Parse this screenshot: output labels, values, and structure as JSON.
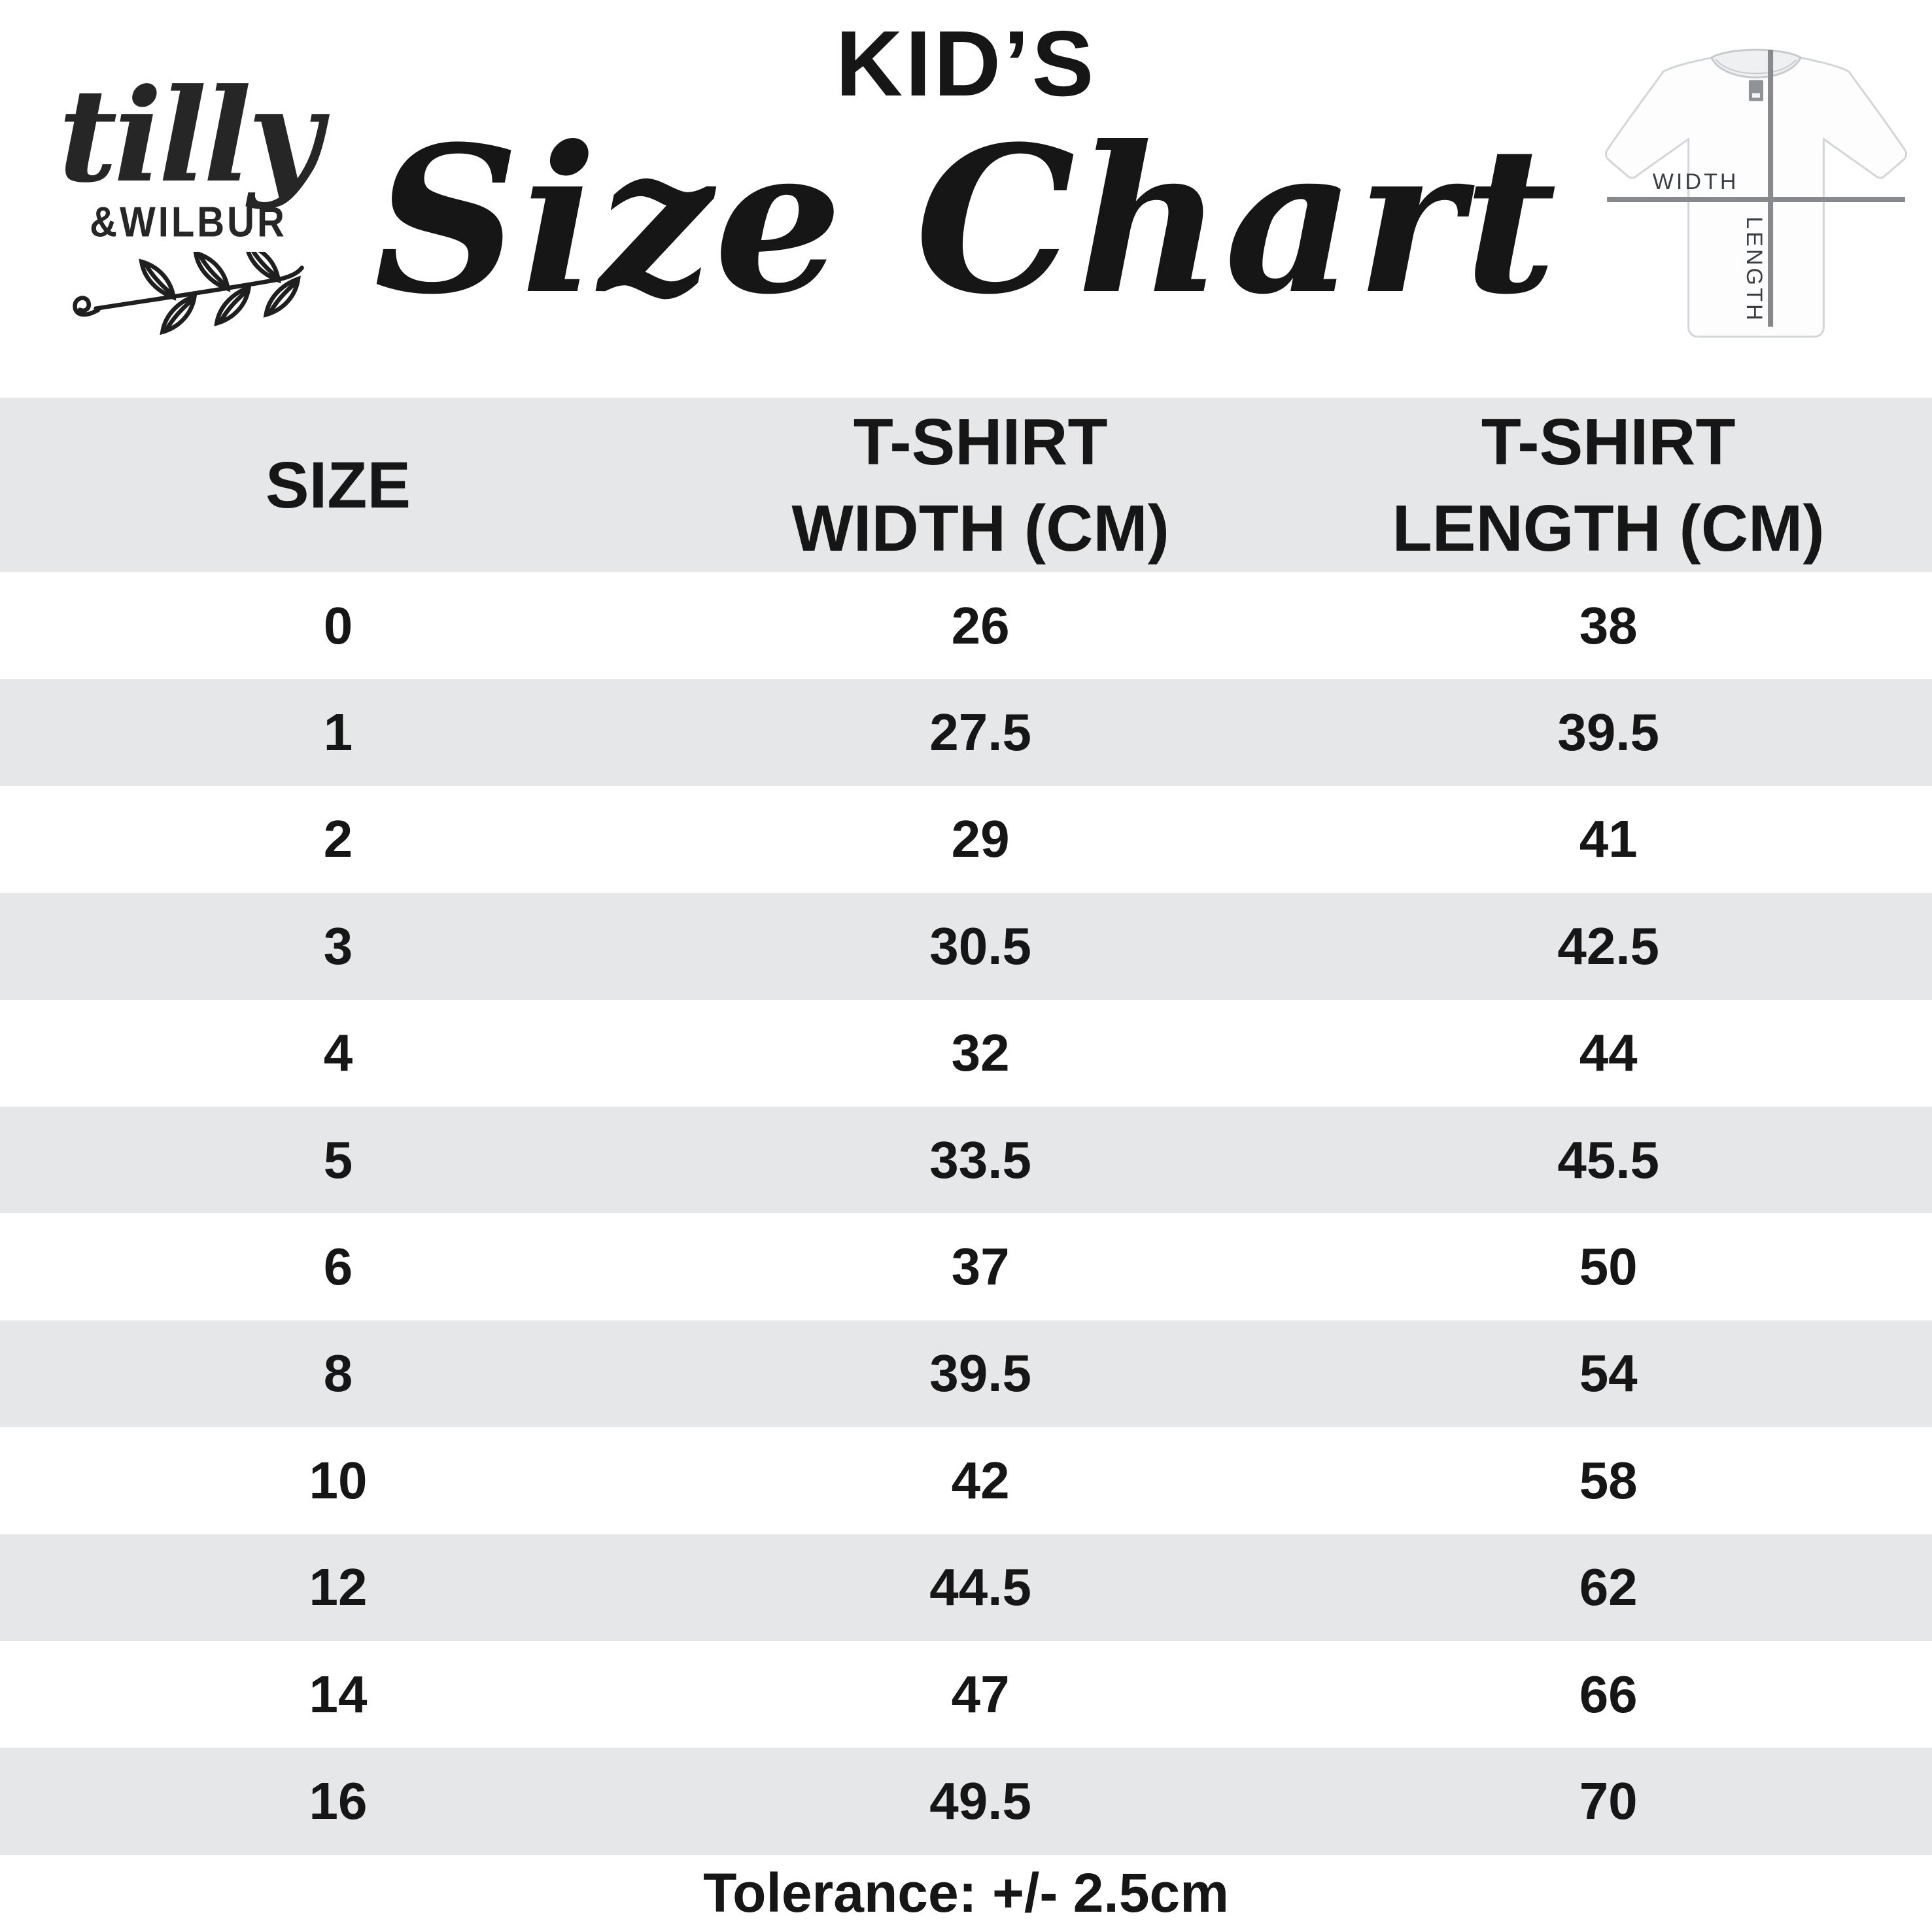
{
  "brand": {
    "script_name": "tilly",
    "caps_name": "&WILBUR"
  },
  "header": {
    "kicker": "KID’S",
    "title": "Size Chart"
  },
  "tshirt_diagram": {
    "width_label": "WIDTH",
    "length_label": "LENGTH",
    "line_color": "#87898c",
    "label_color": "#3b3f43"
  },
  "table": {
    "columns": [
      "SIZE",
      "T-SHIRT\nWIDTH (CM)",
      "T-SHIRT\nLENGTH (CM)"
    ],
    "alt_row_color": "#e6e7e8",
    "rows": [
      {
        "size": "0",
        "width": "26",
        "length": "38"
      },
      {
        "size": "1",
        "width": "27.5",
        "length": "39.5"
      },
      {
        "size": "2",
        "width": "29",
        "length": "41"
      },
      {
        "size": "3",
        "width": "30.5",
        "length": "42.5"
      },
      {
        "size": "4",
        "width": "32",
        "length": "44"
      },
      {
        "size": "5",
        "width": "33.5",
        "length": "45.5"
      },
      {
        "size": "6",
        "width": "37",
        "length": "50"
      },
      {
        "size": "8",
        "width": "39.5",
        "length": "54"
      },
      {
        "size": "10",
        "width": "42",
        "length": "58"
      },
      {
        "size": "12",
        "width": "44.5",
        "length": "62"
      },
      {
        "size": "14",
        "width": "47",
        "length": "66"
      },
      {
        "size": "16",
        "width": "49.5",
        "length": "70"
      }
    ]
  },
  "footer": {
    "tolerance": "Tolerance: +/- 2.5cm"
  },
  "chart_data": {
    "type": "table",
    "title": "KID’S Size Chart",
    "columns": [
      "SIZE",
      "T-SHIRT WIDTH (CM)",
      "T-SHIRT LENGTH (CM)"
    ],
    "rows": [
      [
        0,
        26,
        38
      ],
      [
        1,
        27.5,
        39.5
      ],
      [
        2,
        29,
        41
      ],
      [
        3,
        30.5,
        42.5
      ],
      [
        4,
        32,
        44
      ],
      [
        5,
        33.5,
        45.5
      ],
      [
        6,
        37,
        50
      ],
      [
        8,
        39.5,
        54
      ],
      [
        10,
        42,
        58
      ],
      [
        12,
        44.5,
        62
      ],
      [
        14,
        47,
        66
      ],
      [
        16,
        49.5,
        70
      ]
    ],
    "notes": "Tolerance: +/- 2.5cm"
  }
}
